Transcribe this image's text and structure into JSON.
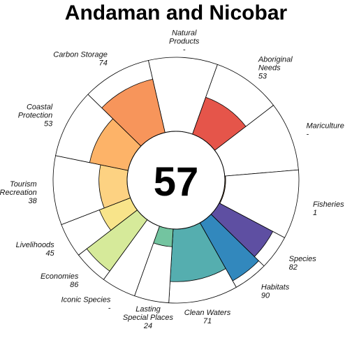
{
  "chart_data": {
    "type": "polar-bar",
    "title": "Andaman and Nicobar",
    "center_score": "57",
    "rlim": [
      0,
      100
    ],
    "goals": [
      {
        "label": "Natural Products",
        "value_label": "-",
        "value": null,
        "weight": 1,
        "color": "#9E0142"
      },
      {
        "label": "Aboriginal Needs",
        "value_label": "53",
        "value": 53,
        "weight": 1,
        "color": "#E5554A"
      },
      {
        "label": "Mariculture",
        "value_label": "-",
        "value": null,
        "weight": 1,
        "color": "#F46D43"
      },
      {
        "label": "Fisheries",
        "value_label": "1",
        "value": 1,
        "weight": 1,
        "color": "#FDAE61"
      },
      {
        "label": "Species",
        "value_label": "82",
        "value": 82,
        "weight": 0.5,
        "color": "#5E4FA2"
      },
      {
        "label": "Habitats",
        "value_label": "90",
        "value": 90,
        "weight": 0.5,
        "color": "#3288BD"
      },
      {
        "label": "Clean Waters",
        "value_label": "71",
        "value": 71,
        "weight": 1,
        "color": "#55AEAF"
      },
      {
        "label": "Lasting Special Places",
        "value_label": "24",
        "value": 24,
        "weight": 0.5,
        "color": "#73C4A0"
      },
      {
        "label": "Iconic Species",
        "value_label": "-",
        "value": null,
        "weight": 0.5,
        "color": "#ABDDA4"
      },
      {
        "label": "Economies",
        "value_label": "86",
        "value": 86,
        "weight": 0.5,
        "color": "#D6EA9A"
      },
      {
        "label": "Livelihoods",
        "value_label": "45",
        "value": 45,
        "weight": 0.5,
        "color": "#F8E48A"
      },
      {
        "label": "Tourism & Recreation",
        "value_label": "38",
        "value": 38,
        "weight": 1,
        "color": "#FDD282"
      },
      {
        "label": "Coastal Protection",
        "value_label": "53",
        "value": 53,
        "weight": 1,
        "color": "#FDB368"
      },
      {
        "label": "Carbon Storage",
        "value_label": "74",
        "value": 74,
        "weight": 1,
        "color": "#F7955B"
      }
    ]
  }
}
